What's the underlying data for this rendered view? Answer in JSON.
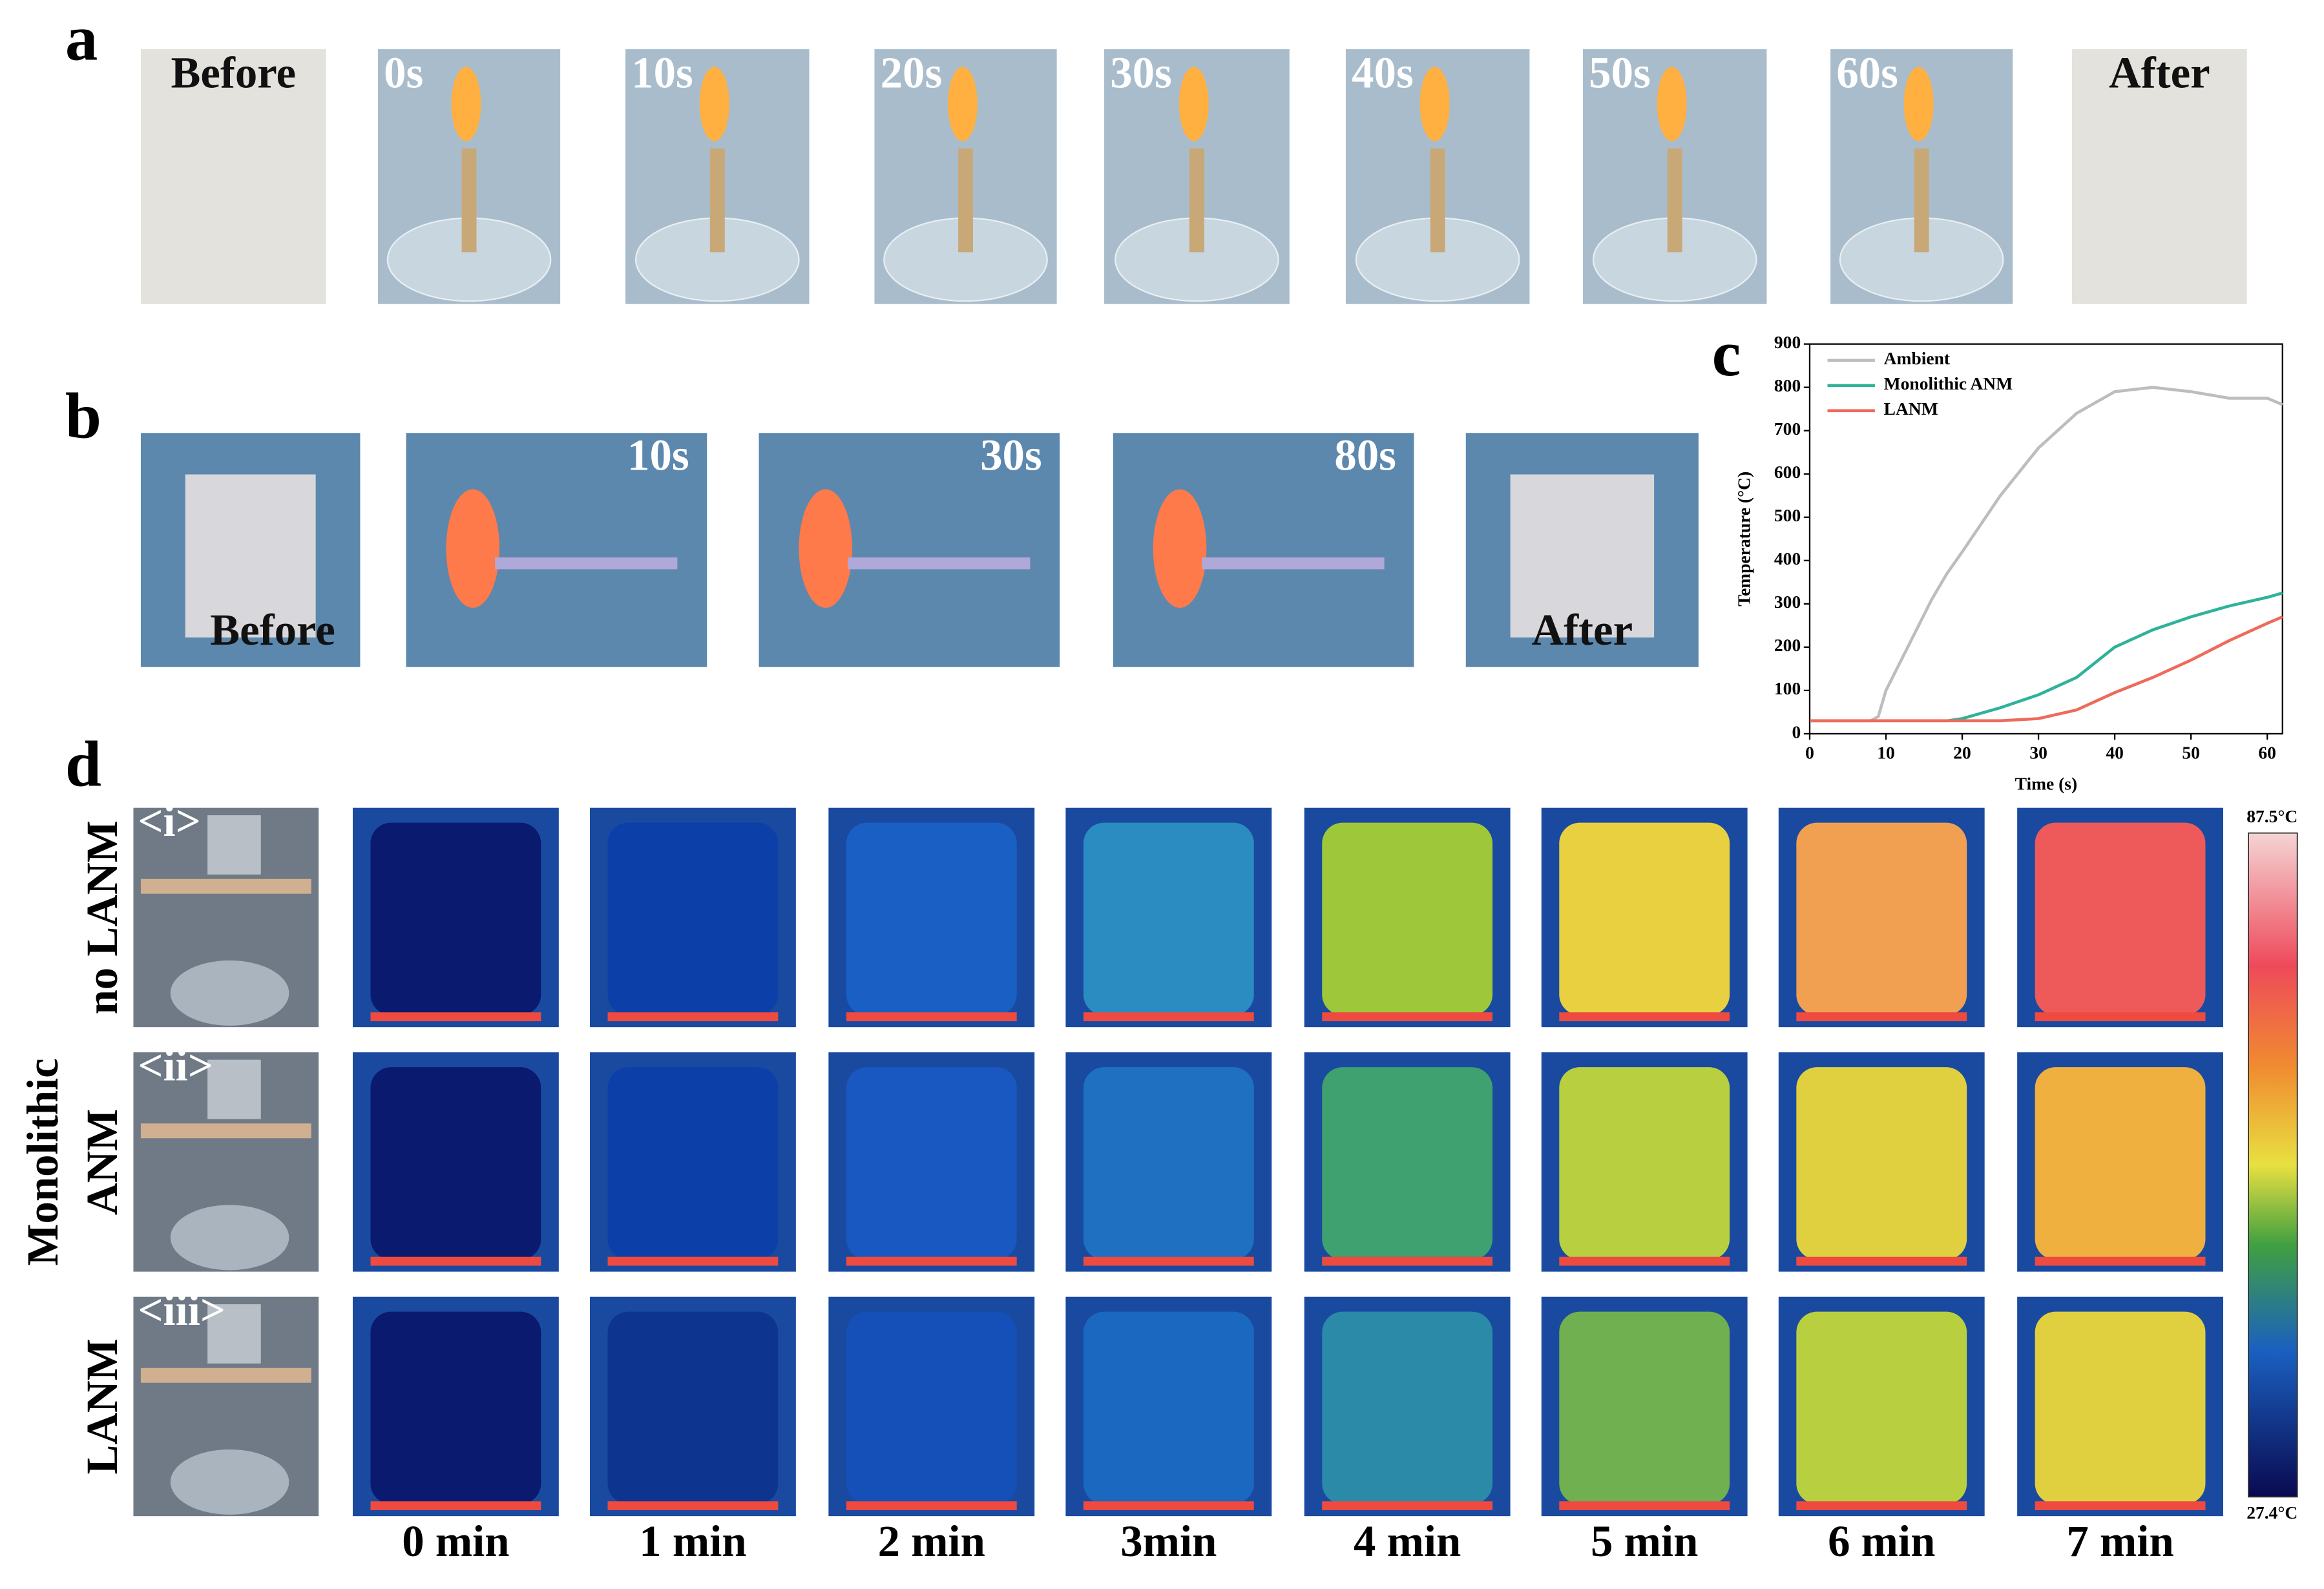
{
  "panels": {
    "a": {
      "label": "a",
      "frames": [
        "Before",
        "0s",
        "10s",
        "20s",
        "30s",
        "40s",
        "50s",
        "60s",
        "After"
      ]
    },
    "b": {
      "label": "b",
      "frames": [
        "Before",
        "10s",
        "30s",
        "80s",
        "After"
      ]
    },
    "c": {
      "label": "c"
    },
    "d": {
      "label": "d",
      "rows": [
        {
          "name": "no LANM",
          "tag": "<i>"
        },
        {
          "group": "Monolithic",
          "name": "ANM",
          "tag": "<ii>"
        },
        {
          "name": "LANM",
          "tag": "<iii>"
        }
      ],
      "columns": [
        "0 min",
        "1 min",
        "2 min",
        "3min",
        "4 min",
        "5 min",
        "6 min",
        "7 min"
      ],
      "colorbar": {
        "max": "87.5°C",
        "min": "27.4°C"
      }
    }
  },
  "chart_data": {
    "type": "line",
    "xlabel": "Time (s)",
    "ylabel": "Temperature (°C)",
    "x": [
      0,
      8,
      9,
      10,
      12,
      14,
      16,
      18,
      20,
      25,
      30,
      35,
      40,
      45,
      50,
      55,
      60,
      62
    ],
    "series": [
      {
        "name": "Ambient",
        "color": "#bdbdbd",
        "values": [
          30,
          30,
          40,
          100,
          170,
          240,
          310,
          370,
          420,
          550,
          660,
          740,
          790,
          800,
          790,
          775,
          775,
          760
        ]
      },
      {
        "name": "Monolithic ANM",
        "color": "#2fb29a",
        "values": [
          30,
          30,
          30,
          30,
          30,
          30,
          30,
          30,
          35,
          60,
          90,
          130,
          200,
          240,
          270,
          295,
          315,
          325
        ]
      },
      {
        "name": "LANM",
        "color": "#ee6a5a",
        "values": [
          30,
          30,
          30,
          30,
          30,
          30,
          30,
          30,
          30,
          30,
          35,
          55,
          95,
          130,
          170,
          215,
          255,
          270
        ]
      }
    ],
    "xlim": [
      0,
      62
    ],
    "xticks": [
      0,
      10,
      20,
      30,
      40,
      50,
      60
    ],
    "ylim": [
      0,
      900
    ],
    "yticks": [
      0,
      100,
      200,
      300,
      400,
      500,
      600,
      700,
      800,
      900
    ],
    "legend": "upper left"
  }
}
